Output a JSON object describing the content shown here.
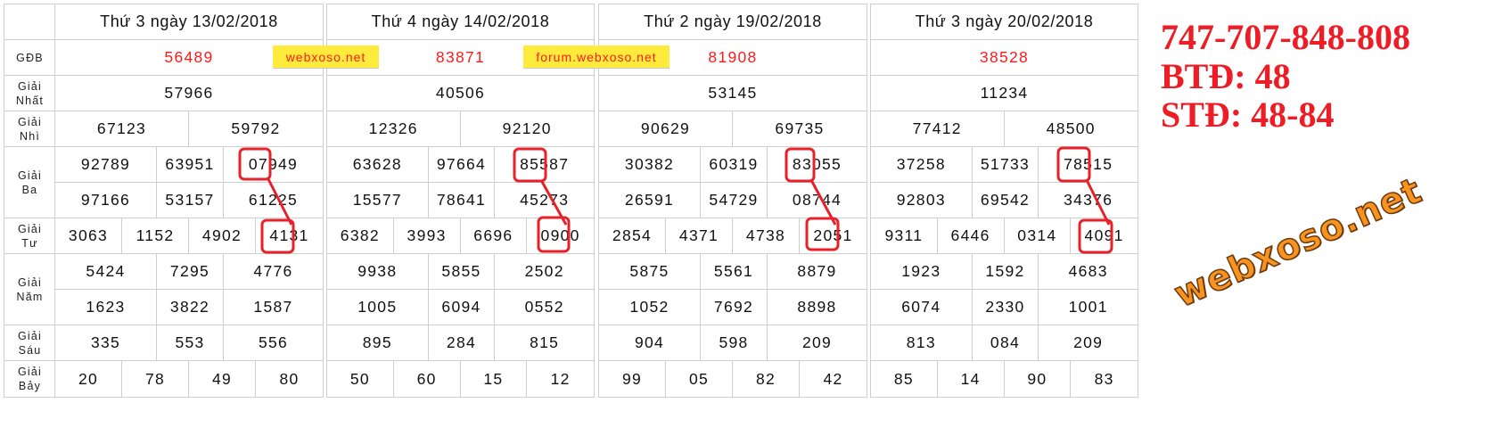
{
  "watermark": "webxoso.net",
  "banners": [
    "webxoso.net",
    "forum.webxoso.net"
  ],
  "labels": [
    "",
    "GĐB",
    "Giải Nhất",
    "Giải Nhì",
    "Giải Ba",
    "Giải Tư",
    "Giải Năm",
    "Giải Sáu",
    "Giải Bảy"
  ],
  "days": [
    {
      "header": "Thứ 3 ngày 13/02/2018",
      "gdb": "56489",
      "nhat": "57966",
      "nhi": [
        "67123",
        "59792"
      ],
      "ba": [
        "92789",
        "63951",
        "07949",
        "97166",
        "53157",
        "61225"
      ],
      "tu": [
        "3063",
        "1152",
        "4902",
        "4131"
      ],
      "nam": [
        "5424",
        "7295",
        "4776",
        "1623",
        "3822",
        "1587"
      ],
      "sau": [
        "335",
        "553",
        "556"
      ],
      "bay": [
        "20",
        "78",
        "49",
        "80"
      ]
    },
    {
      "header": "Thứ 4 ngày 14/02/2018",
      "gdb": "83871",
      "nhat": "40506",
      "nhi": [
        "12326",
        "92120"
      ],
      "ba": [
        "63628",
        "97664",
        "85587",
        "15577",
        "78641",
        "45273"
      ],
      "tu": [
        "6382",
        "3993",
        "6696",
        "0900"
      ],
      "nam": [
        "9938",
        "5855",
        "2502",
        "1005",
        "6094",
        "0552"
      ],
      "sau": [
        "895",
        "284",
        "815"
      ],
      "bay": [
        "50",
        "60",
        "15",
        "12"
      ]
    },
    {
      "header": "Thứ 2 ngày 19/02/2018",
      "gdb": "81908",
      "nhat": "53145",
      "nhi": [
        "90629",
        "69735"
      ],
      "ba": [
        "30382",
        "60319",
        "83055",
        "26591",
        "54729",
        "08744"
      ],
      "tu": [
        "2854",
        "4371",
        "4738",
        "2051"
      ],
      "nam": [
        "5875",
        "5561",
        "8879",
        "1052",
        "7692",
        "8898"
      ],
      "sau": [
        "904",
        "598",
        "209"
      ],
      "bay": [
        "99",
        "05",
        "82",
        "42"
      ]
    },
    {
      "header": "Thứ 3 ngày 20/02/2018",
      "gdb": "38528",
      "nhat": "11234",
      "nhi": [
        "77412",
        "48500"
      ],
      "ba": [
        "37258",
        "51733",
        "78515",
        "92803",
        "69542",
        "34376"
      ],
      "tu": [
        "9311",
        "6446",
        "0314",
        "4091"
      ],
      "nam": [
        "1923",
        "1592",
        "4683",
        "6074",
        "2330",
        "1001"
      ],
      "sau": [
        "813",
        "084",
        "209"
      ],
      "bay": [
        "85",
        "14",
        "90",
        "83"
      ]
    }
  ],
  "highlights": [
    {
      "from": "07",
      "to": "41"
    },
    {
      "from": "85",
      "to": "09"
    },
    {
      "from": "83",
      "to": "20"
    },
    {
      "from": "78",
      "to": "40"
    }
  ],
  "prediction": {
    "line1": "747-707-848-808",
    "line2": "BTĐ: 48",
    "line3": "STĐ: 48-84"
  },
  "colors": {
    "accent_red": "#ee1c25",
    "special_prize": "#ff1a1a",
    "banner_yellow": "#ffeb3b",
    "watermark_orange": "#f7931e",
    "grid": "#cfcfcf"
  }
}
